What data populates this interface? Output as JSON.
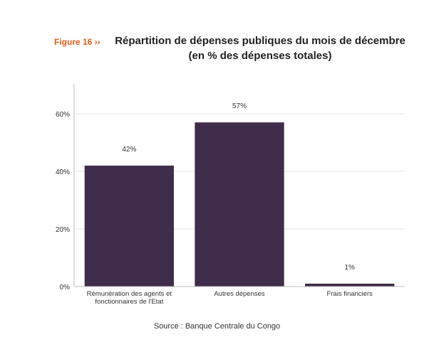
{
  "figure_label": "Figure 16 ››",
  "title_line1": "Répartition de dépenses publiques du mois de décembre",
  "title_line2": "(en % des dépenses totales)",
  "source": "Source : Banque Centrale du Congo",
  "colors": {
    "bar": "#3f2d4b",
    "accent": "#e35d1b",
    "grid": "#e6e6e6",
    "axis": "#bdbdbd"
  },
  "chart_data": {
    "type": "bar",
    "categories": [
      [
        "Rémunération des agents et",
        "fonctionnaires de l'Etat"
      ],
      [
        "Autres dépenses"
      ],
      [
        "Frais financiers"
      ]
    ],
    "values": [
      42,
      57,
      1
    ],
    "data_labels": [
      "42%",
      "57%",
      "1%"
    ],
    "ylim": [
      0,
      60
    ],
    "yticks": [
      0,
      20,
      40,
      60
    ],
    "ytick_labels": [
      "0%",
      "20%",
      "40%",
      "60%"
    ],
    "grid": true,
    "xlabel": "",
    "ylabel": ""
  }
}
